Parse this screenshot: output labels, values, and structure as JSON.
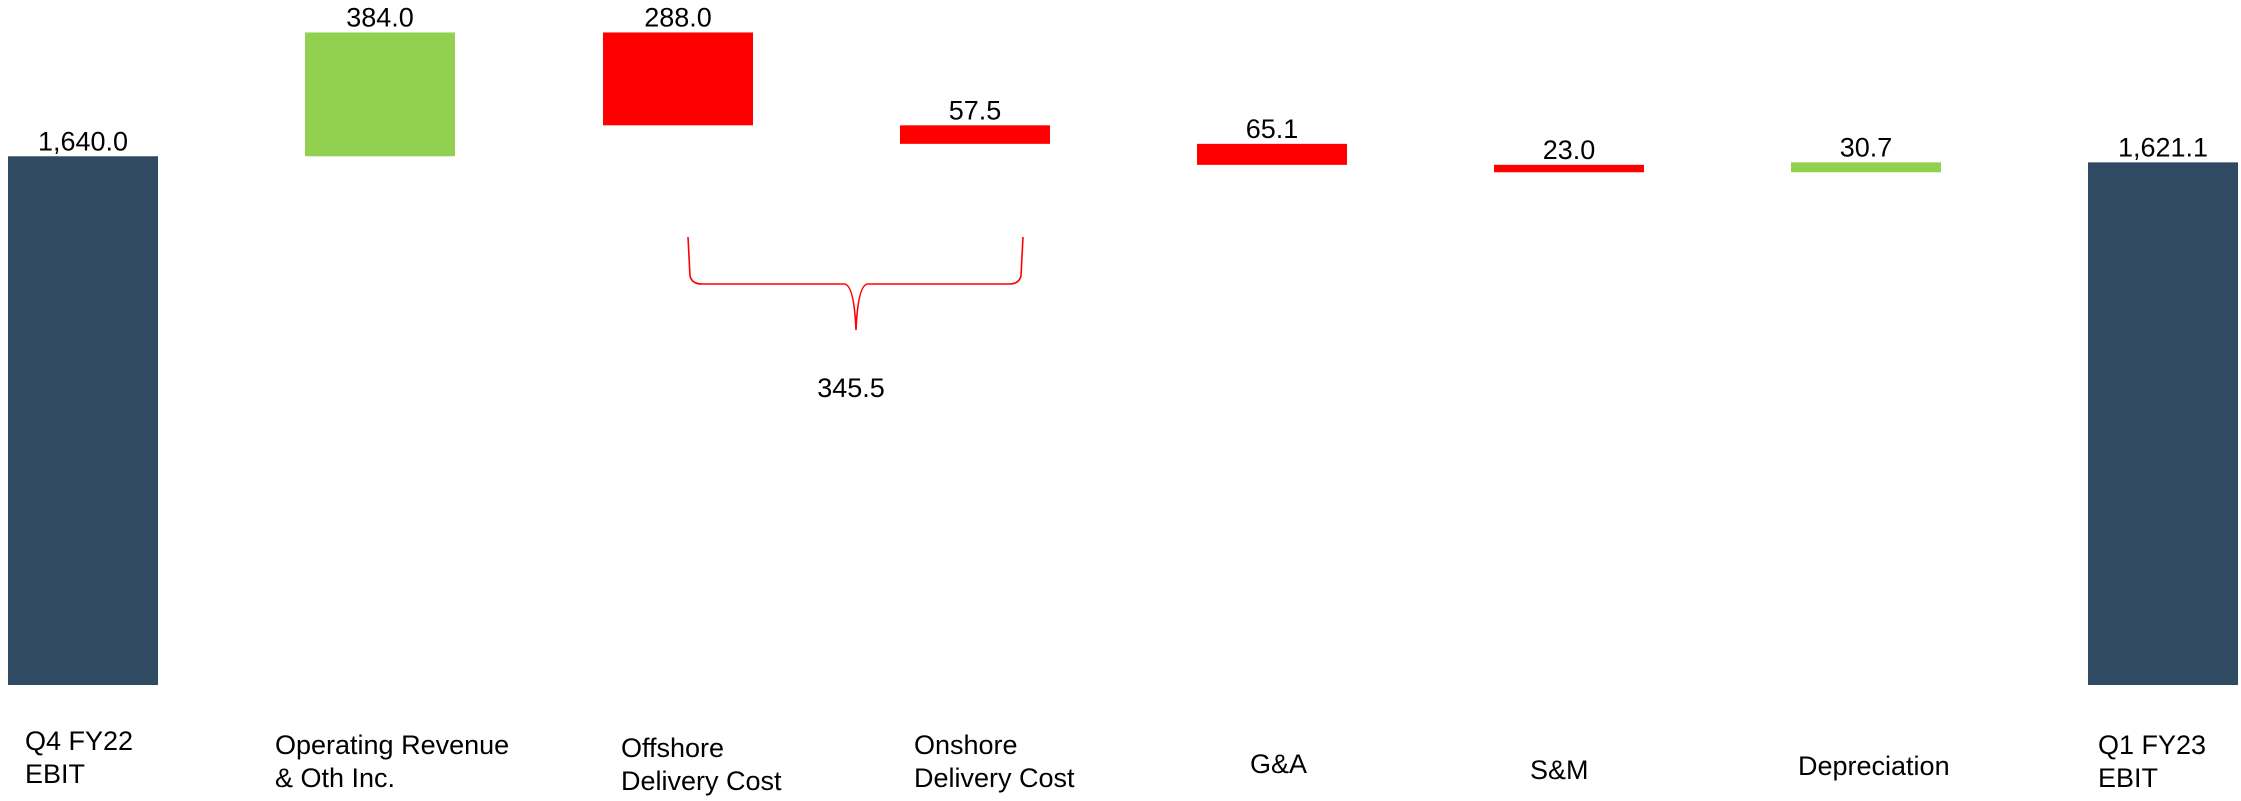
{
  "chart_data": {
    "type": "waterfall",
    "title": "",
    "xlabel": "",
    "ylabel": "",
    "ylim": [
      0,
      2024
    ],
    "grid": false,
    "legend": "none",
    "categories": [
      [
        "Q4 FY22",
        "EBIT"
      ],
      [
        "Operating Revenue",
        "& Oth Inc."
      ],
      [
        "Offshore",
        "Delivery Cost"
      ],
      [
        "Onshore",
        "Delivery Cost"
      ],
      [
        "G&A"
      ],
      [
        "S&M"
      ],
      [
        "Depreciation"
      ],
      [
        "Q1 FY23",
        "EBIT"
      ]
    ],
    "steps": [
      {
        "kind": "total",
        "value": 1640.0,
        "label": "1,640.0"
      },
      {
        "kind": "increase",
        "value": 384.0,
        "label": "384.0"
      },
      {
        "kind": "decrease",
        "value": 288.0,
        "label": "288.0"
      },
      {
        "kind": "decrease",
        "value": 57.5,
        "label": "57.5"
      },
      {
        "kind": "decrease",
        "value": 65.1,
        "label": "65.1"
      },
      {
        "kind": "decrease",
        "value": 23.0,
        "label": "23.0"
      },
      {
        "kind": "increase",
        "value": 30.7,
        "label": "30.7"
      },
      {
        "kind": "total",
        "value": 1621.1,
        "label": "1,621.1"
      }
    ],
    "bracket": {
      "from_index": 2,
      "to_index": 3,
      "value": 345.5,
      "label": "345.5"
    },
    "colors": {
      "total": "#314a63",
      "increase": "#92d050",
      "decrease": "#ff0000",
      "bracket": "#ff0000"
    }
  }
}
